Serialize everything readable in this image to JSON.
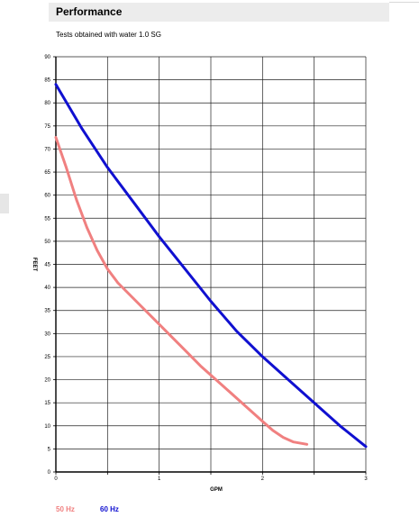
{
  "header": {
    "title": "Performance"
  },
  "chart_data": {
    "type": "line",
    "title": "Performance",
    "subtitle": "Tests obtained with water 1.0 SG",
    "xlabel": "GPM",
    "ylabel": "FEET",
    "xlim": [
      0,
      3
    ],
    "ylim": [
      0,
      90
    ],
    "x_ticks": [
      0,
      1,
      2,
      3
    ],
    "y_ticks": [
      0,
      5,
      10,
      15,
      20,
      25,
      30,
      35,
      40,
      45,
      50,
      55,
      60,
      65,
      70,
      75,
      80,
      85,
      90
    ],
    "grid": true,
    "legend_position": "bottom-left",
    "series": [
      {
        "name": "50 Hz",
        "color": "#f08080",
        "x": [
          0,
          0.1,
          0.2,
          0.3,
          0.4,
          0.5,
          0.6,
          0.8,
          1.0,
          1.2,
          1.4,
          1.6,
          1.8,
          2.0,
          2.1,
          2.2,
          2.3,
          2.43
        ],
        "y": [
          72.5,
          66,
          59,
          53,
          48,
          44,
          41,
          36.5,
          32,
          27.5,
          23,
          19,
          15,
          11,
          9,
          7.5,
          6.5,
          6
        ]
      },
      {
        "name": "60 Hz",
        "color": "#1010d0",
        "x": [
          0,
          0.25,
          0.5,
          0.75,
          1.0,
          1.25,
          1.5,
          1.75,
          2.0,
          2.25,
          2.5,
          2.75,
          3.0
        ],
        "y": [
          84,
          74.5,
          66,
          58.5,
          51,
          44,
          37,
          30.5,
          25,
          20,
          15,
          10,
          5.5
        ]
      }
    ]
  }
}
